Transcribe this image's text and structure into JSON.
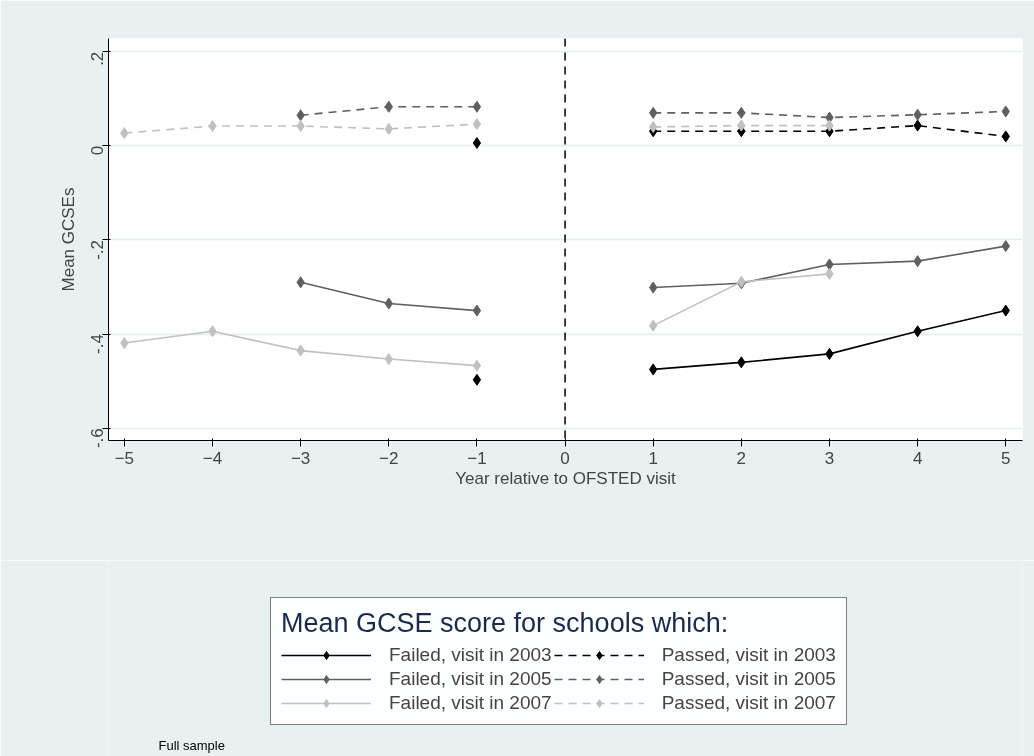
{
  "chart_data": {
    "type": "line",
    "xlabel": "Year relative to OFSTED visit",
    "ylabel": "Mean GCSEs",
    "legend_title": "Mean GCSE score for schools which:",
    "x": [
      -5,
      -4,
      -3,
      -2,
      -1,
      0,
      1,
      2,
      3,
      4,
      5
    ],
    "series": [
      {
        "name": "Failed, visit in 2003",
        "color": "#000000",
        "line_style": "solid",
        "values": [
          null,
          null,
          null,
          null,
          -0.497,
          null,
          -0.475,
          -0.46,
          -0.442,
          -0.394,
          -0.35
        ]
      },
      {
        "name": "Passed, visit in 2003",
        "color": "#000000",
        "line_style": "dashed",
        "values": [
          null,
          null,
          null,
          null,
          0.006,
          null,
          0.031,
          0.031,
          0.031,
          0.043,
          0.02
        ]
      },
      {
        "name": "Failed, visit in 2005",
        "color": "#606060",
        "line_style": "solid",
        "values": [
          null,
          null,
          -0.29,
          -0.335,
          -0.35,
          null,
          -0.301,
          -0.292,
          -0.252,
          -0.245,
          -0.213
        ]
      },
      {
        "name": "Passed, visit in 2005",
        "color": "#606060",
        "line_style": "dashed",
        "values": [
          null,
          null,
          0.065,
          0.083,
          0.083,
          null,
          0.07,
          0.07,
          0.06,
          0.066,
          0.073
        ]
      },
      {
        "name": "Failed, visit in 2007",
        "color": "#c0c0c0",
        "line_style": "solid",
        "values": [
          -0.419,
          -0.394,
          -0.435,
          -0.453,
          -0.467,
          null,
          -0.382,
          -0.289,
          -0.272,
          null,
          null
        ]
      },
      {
        "name": "Passed, visit in 2007",
        "color": "#c0c0c0",
        "line_style": "dashed",
        "values": [
          0.027,
          0.042,
          0.042,
          0.036,
          0.046,
          null,
          0.04,
          0.043,
          0.043,
          null,
          null
        ]
      }
    ],
    "marker": "diamond",
    "xlim": [
      -5.18,
      5.19
    ],
    "ylim": [
      -0.626,
      0.228
    ],
    "xticks": [
      -5,
      -4,
      -3,
      -2,
      -1,
      0,
      1,
      2,
      3,
      4,
      5
    ],
    "yticks": [
      {
        "value": 0.2,
        "label": ".2"
      },
      0,
      {
        "value": -0.2,
        "label": "-.2"
      },
      {
        "value": -0.4,
        "label": "-.4"
      },
      {
        "value": -0.6,
        "label": "-.6"
      }
    ],
    "ref_lines": [
      {
        "axis": "x",
        "value": 0,
        "color": "#000000",
        "line_style": "dashed"
      }
    ],
    "grid": "y",
    "legend": "bottom",
    "annotations": [
      "Full sample"
    ]
  }
}
